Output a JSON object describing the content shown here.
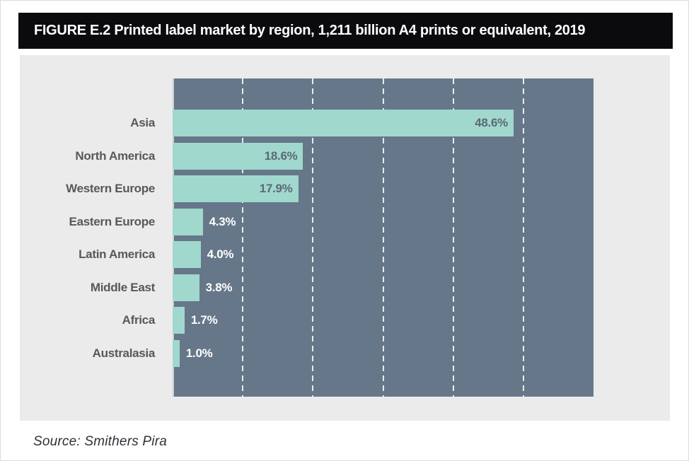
{
  "header": {
    "title": "FIGURE E.2 Printed label market by region, 1,211 billion A4 prints or equivalent, 2019"
  },
  "footer": {
    "source": "Source: Smithers Pira"
  },
  "colors": {
    "title_bar_bg": "#0b0b0d",
    "title_text": "#ffffff",
    "panel_bg": "#ebebeb",
    "plot_bg": "#667789",
    "bar_fill": "#a0d8cd",
    "gridline": "#ffffff",
    "value_label_inside": "#5a6a75",
    "value_label_outside": "#ffffff",
    "category_label": "#57585c",
    "source_text": "#303038"
  },
  "chart_data": {
    "type": "bar",
    "orientation": "horizontal",
    "title": "FIGURE E.2 Printed label market by region, 1,211 billion A4 prints or equivalent, 2019",
    "categories": [
      "Asia",
      "North America",
      "Western Europe",
      "Eastern Europe",
      "Latin America",
      "Middle East",
      "Africa",
      "Australasia"
    ],
    "values": [
      48.6,
      18.6,
      17.9,
      4.3,
      4.0,
      3.8,
      1.7,
      1.0
    ],
    "value_labels": [
      "48.6%",
      "18.6%",
      "17.9%",
      "4.3%",
      "4.0%",
      "3.8%",
      "1.7%",
      "1.0%"
    ],
    "xlabel": "",
    "ylabel": "",
    "xlim": [
      0,
      60
    ],
    "gridline_interval": 10,
    "grid": true,
    "legend": false,
    "inside_label_threshold": 10
  }
}
